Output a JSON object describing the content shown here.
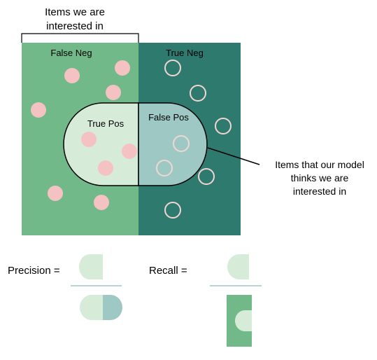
{
  "diagram": {
    "header": {
      "line1": "Items we are",
      "line2": "interested in"
    },
    "regions": {
      "false_neg": "False Neg",
      "true_neg": "True Neg",
      "true_pos": "True Pos",
      "false_pos": "False Pos"
    },
    "callout": {
      "line1": "Items that our model",
      "line2": "thinks we are",
      "line3": "interested in"
    },
    "formulas": {
      "precision_label": "Precision =",
      "recall_label": "Recall ="
    },
    "colors": {
      "left_region": "#72b98a",
      "right_region": "#2f7a6f",
      "true_pos_fill": "#d6ecd9",
      "false_pos_fill": "#9ec8c3",
      "dot_pink": "#f5c2c4",
      "ring_stroke": "#f1d6d3",
      "line": "#000000",
      "divider": "#9cc9c4"
    }
  }
}
